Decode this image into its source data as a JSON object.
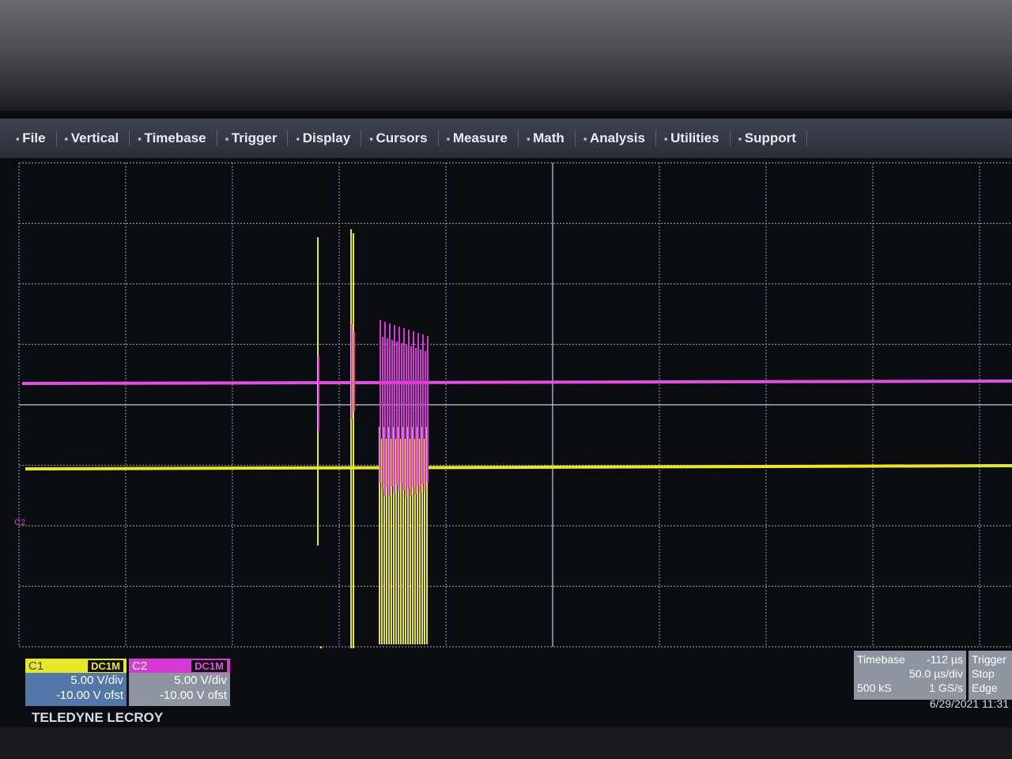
{
  "menu": [
    "File",
    "Vertical",
    "Timebase",
    "Trigger",
    "Display",
    "Cursors",
    "Measure",
    "Math",
    "Analysis",
    "Utilities",
    "Support"
  ],
  "channels": [
    {
      "name": "C1",
      "coupling": "DC1M",
      "scale": "5.00 V/div",
      "offset": "-10.00 V ofst"
    },
    {
      "name": "C2",
      "coupling": "DC1M",
      "scale": "5.00 V/div",
      "offset": "-10.00 V ofst"
    }
  ],
  "timebase": {
    "label": "Timebase",
    "delay": "-112 µs",
    "scale": "50.0 µs/div",
    "samples": "500 kS",
    "rate": "1 GS/s"
  },
  "trigger": {
    "label": "Trigger",
    "mode": "Stop",
    "type": "Edge"
  },
  "brand": "TELEDYNE LECROY",
  "datetime": "6/29/2021 11:31"
}
